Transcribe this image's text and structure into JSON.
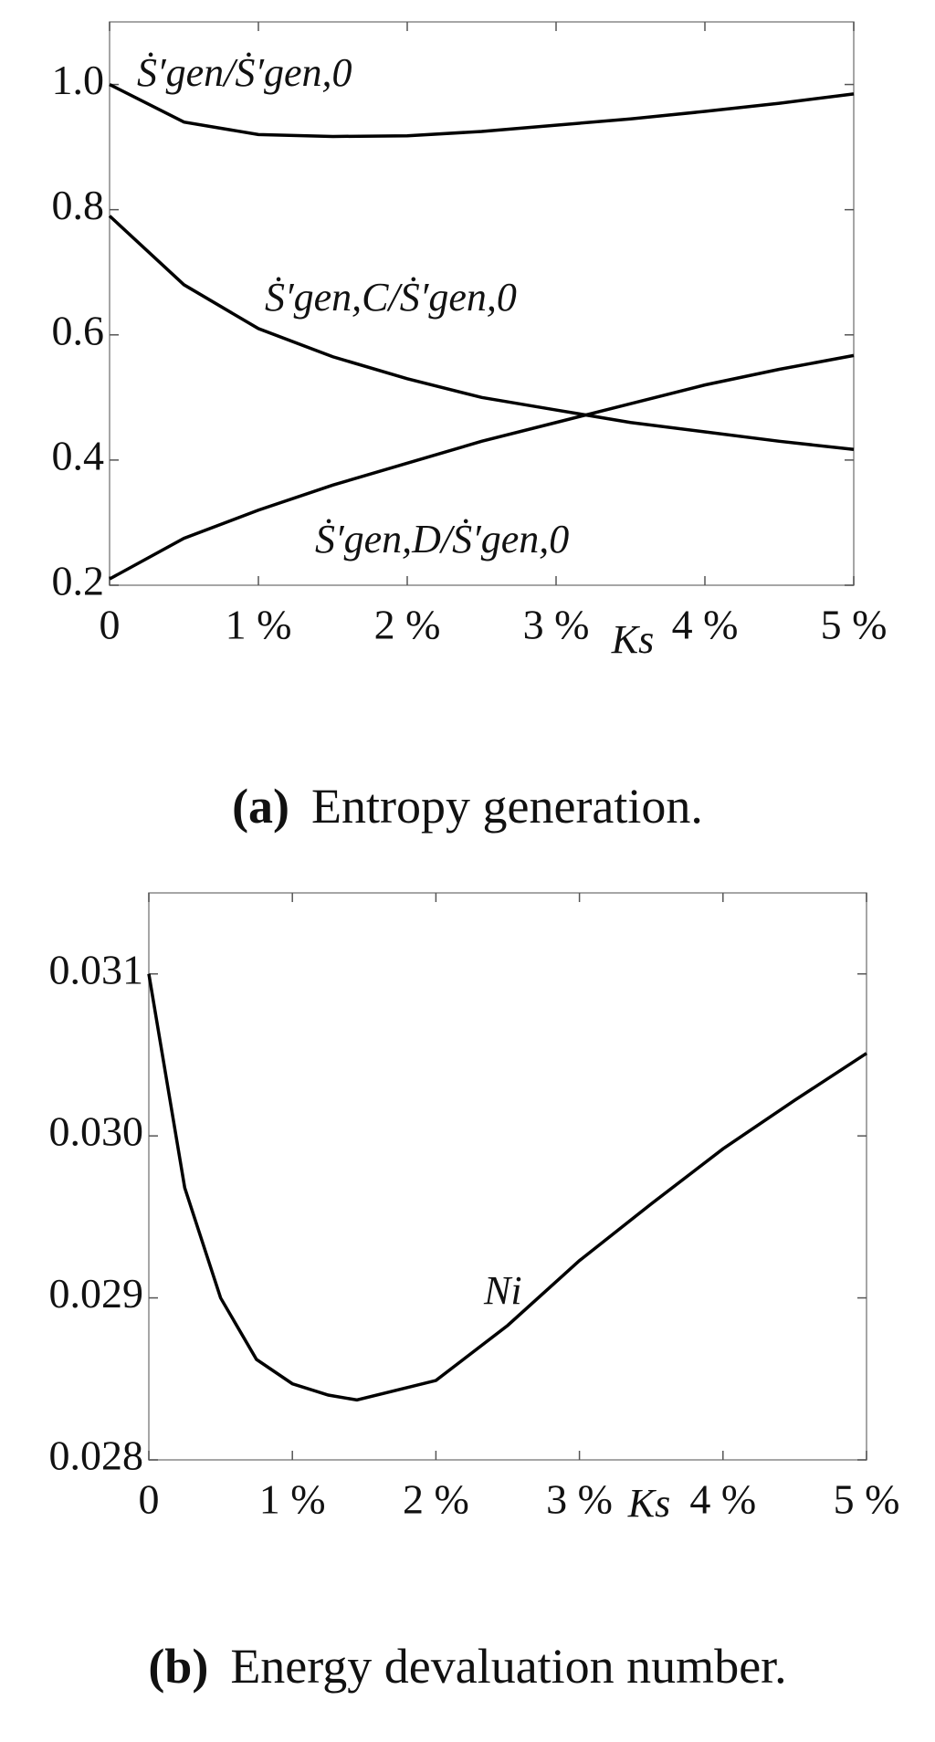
{
  "chart_data": [
    {
      "type": "line",
      "caption_label": "(a)",
      "caption": "Entropy generation.",
      "x_label": "Ks",
      "x": [
        0,
        0.5,
        1,
        1.5,
        2,
        2.5,
        3,
        3.5,
        4,
        4.5,
        5
      ],
      "series": [
        {
          "name": "Ṡ′gen/Ṡ′gen,0",
          "color": "#000000",
          "values": [
            1.0,
            0.94,
            0.92,
            0.917,
            0.918,
            0.925,
            0.935,
            0.945,
            0.957,
            0.97,
            0.985
          ]
        },
        {
          "name": "Ṡ′gen,C/Ṡ′gen,0",
          "color": "#000000",
          "values": [
            0.79,
            0.68,
            0.61,
            0.565,
            0.53,
            0.5,
            0.48,
            0.46,
            0.445,
            0.43,
            0.417
          ]
        },
        {
          "name": "Ṡ′gen,D/Ṡ′gen,0",
          "color": "#000000",
          "values": [
            0.21,
            0.275,
            0.32,
            0.36,
            0.395,
            0.43,
            0.46,
            0.49,
            0.52,
            0.545,
            0.567
          ]
        }
      ],
      "xlim": [
        0,
        5
      ],
      "xticks": [
        0,
        {
          "value": 1,
          "label": "1 %"
        },
        {
          "value": 2,
          "label": "2 %"
        },
        {
          "value": 3,
          "label": "3 %"
        },
        {
          "value": 4,
          "label": "4 %"
        },
        {
          "value": 5,
          "label": "5 %"
        }
      ],
      "ylim": [
        0.2,
        1.1
      ],
      "yticks": [
        0.2,
        0.4,
        0.6,
        0.8,
        {
          "value": 1,
          "label": "1.0"
        }
      ],
      "grid": false
    },
    {
      "type": "line",
      "caption_label": "(b)",
      "caption": "Energy devaluation number.",
      "x_label": "Ks",
      "x": [
        0,
        0.25,
        0.5,
        0.75,
        1,
        1.25,
        1.45,
        2,
        2.5,
        3,
        3.5,
        4,
        4.5,
        5
      ],
      "series": [
        {
          "name": "Ni",
          "color": "#000000",
          "values": [
            0.031,
            0.02968,
            0.029,
            0.02862,
            0.02847,
            0.0284,
            0.02837,
            0.02849,
            0.02883,
            0.02923,
            0.02958,
            0.02992,
            0.03022,
            0.03051
          ]
        }
      ],
      "xlim": [
        0,
        5
      ],
      "xticks": [
        0,
        {
          "value": 1,
          "label": "1 %"
        },
        {
          "value": 2,
          "label": "2 %"
        },
        {
          "value": 3,
          "label": "3 %"
        },
        {
          "value": 4,
          "label": "4 %"
        },
        {
          "value": 5,
          "label": "5 %"
        }
      ],
      "ylim": [
        0.028,
        0.0315
      ],
      "yticks": [
        0.028,
        0.029,
        {
          "value": 0.03,
          "label": "0.030"
        },
        0.031
      ],
      "grid": false
    }
  ]
}
